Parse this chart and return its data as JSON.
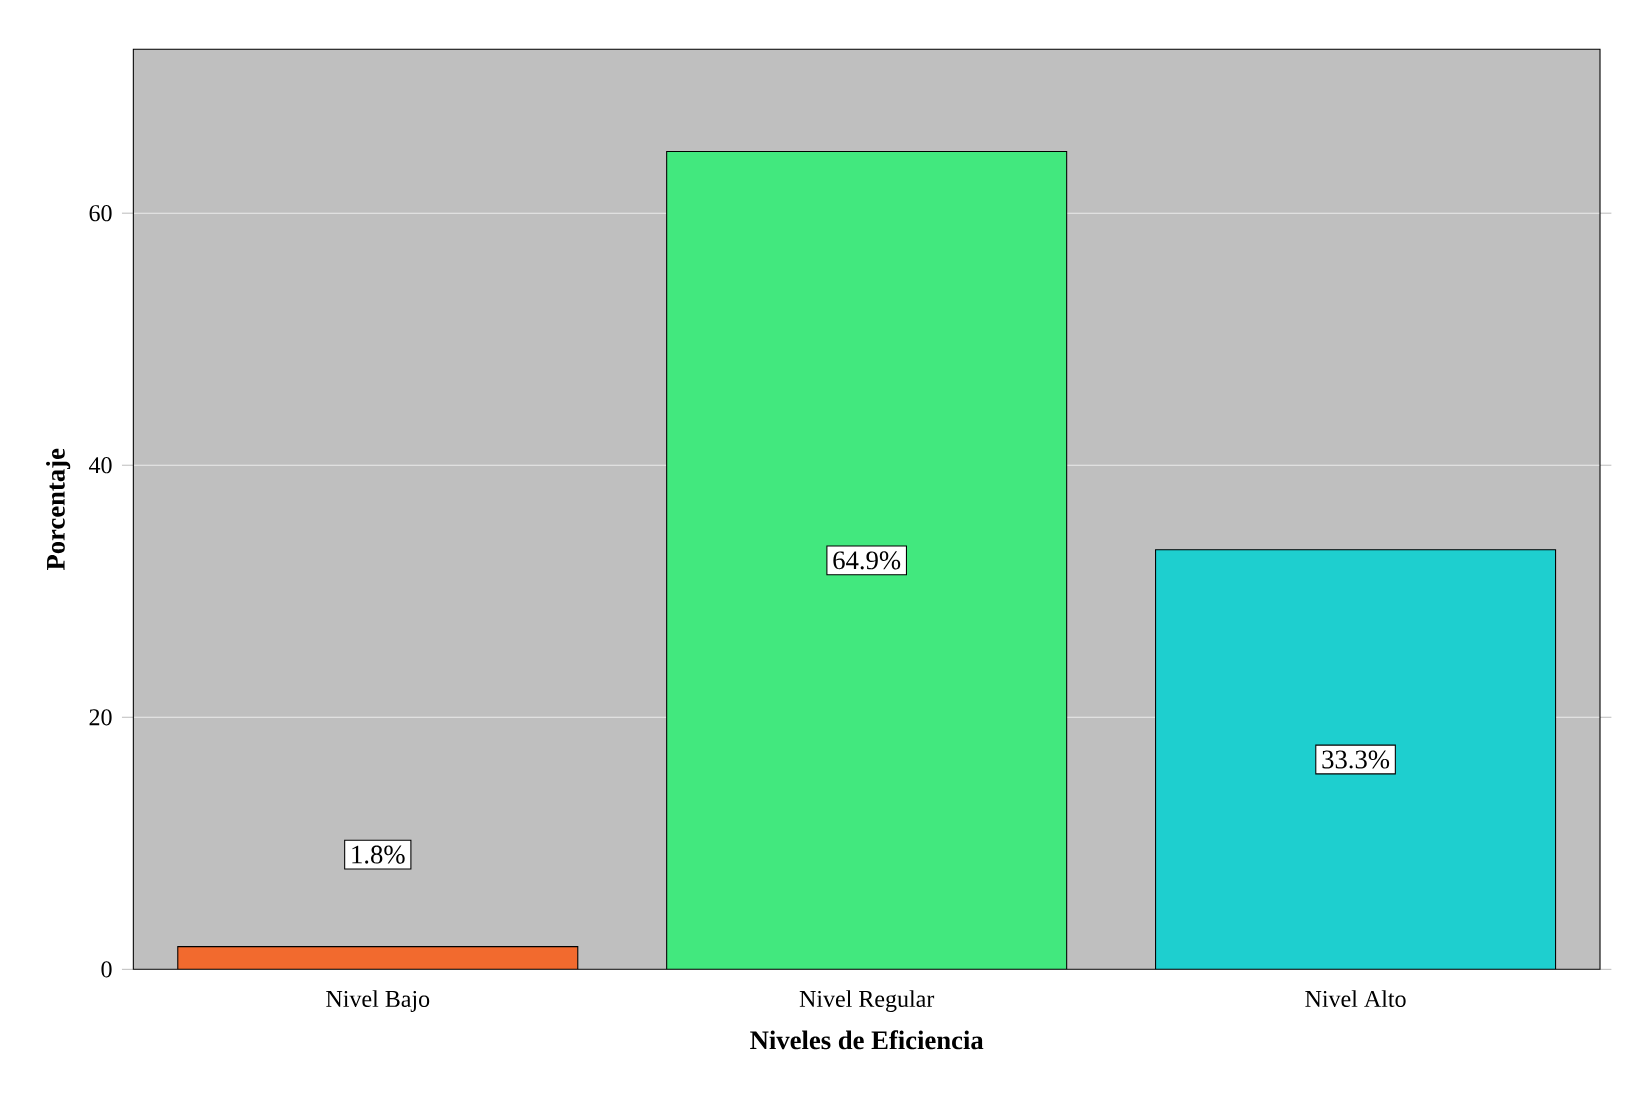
{
  "chart_data": {
    "type": "bar",
    "xlabel": "Niveles de Eficiencia",
    "ylabel": "Porcentaje",
    "categories": [
      "Nivel Bajo",
      "Nivel Regular",
      "Nivel Alto"
    ],
    "values": [
      1.8,
      64.9,
      33.3
    ],
    "colors": [
      "#f26a2e",
      "#42e87e",
      "#1ecfcf"
    ],
    "value_labels": [
      "1.8%",
      "64.9%",
      "33.3%"
    ],
    "ylim": [
      0,
      73
    ],
    "yticks": [
      0,
      20,
      40,
      60
    ],
    "grid": "y"
  }
}
